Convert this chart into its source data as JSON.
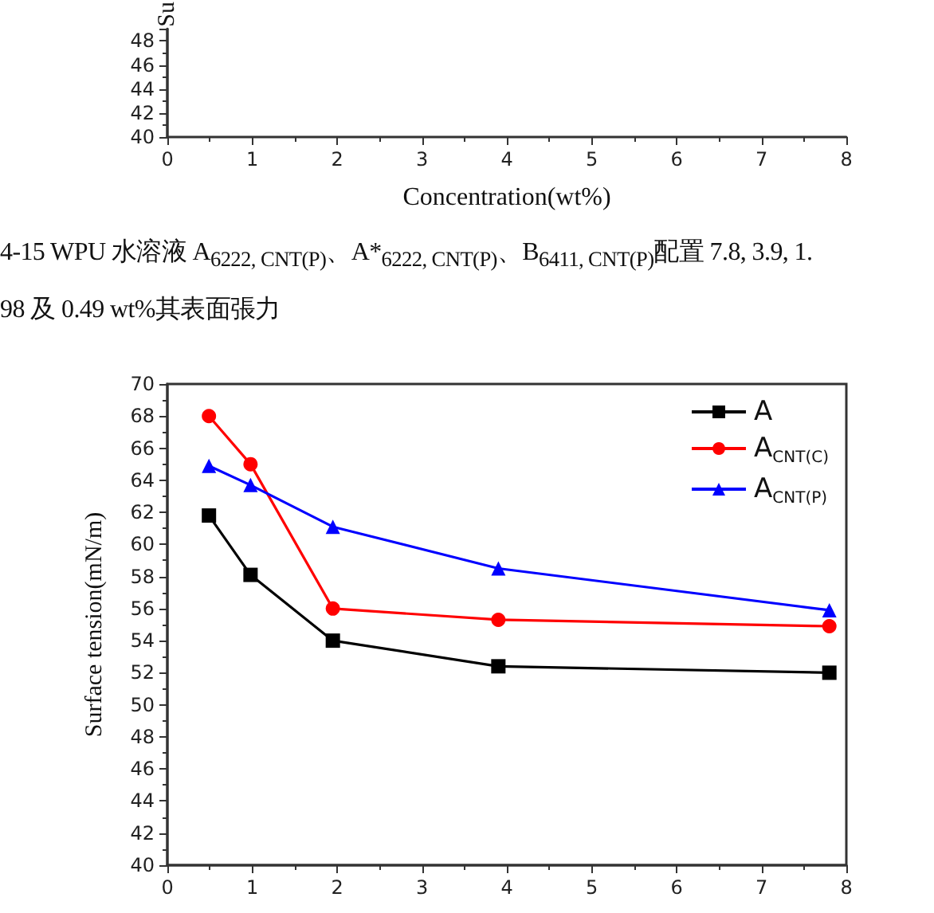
{
  "chart_data": [
    {
      "type": "line",
      "xlabel": "Concentration(wt%)",
      "ylabel": "Su",
      "xlim": [
        0,
        8
      ],
      "xticks": [
        0,
        1,
        2,
        3,
        4,
        5,
        6,
        7,
        8
      ],
      "ylim": [
        40,
        49
      ],
      "yticks": [
        40,
        42,
        44,
        46,
        48
      ],
      "grid": false,
      "legend": false,
      "annotations": [
        "4-15 WPU 水溶液 A$_{6222, CNT(P)}$、A*$_{6222, CNT(P)}$、B$_{6411, CNT(P)}$配置 7.8, 3.9, 1.",
        "98 及 0.49 wt%其表面張力"
      ]
    },
    {
      "type": "line",
      "ylabel": "Surface tension(mN/m)",
      "xlim": [
        0,
        8
      ],
      "xticks": [
        0,
        1,
        2,
        3,
        4,
        5,
        6,
        7,
        8
      ],
      "ylim": [
        40,
        70
      ],
      "yticks": [
        40,
        42,
        44,
        46,
        48,
        50,
        52,
        54,
        56,
        58,
        60,
        62,
        64,
        66,
        68,
        70
      ],
      "grid": false,
      "legend": "top right",
      "x": [
        0.49,
        0.98,
        1.95,
        3.9,
        7.8
      ],
      "series": [
        {
          "name": "A",
          "color": "#000000",
          "marker": "square",
          "values": [
            61.8,
            58.1,
            54.0,
            52.4,
            52.0
          ]
        },
        {
          "name": "A$_{CNT(C)}$",
          "color": "#ff0000",
          "marker": "circle",
          "values": [
            68.0,
            65.0,
            56.0,
            55.3,
            54.9
          ]
        },
        {
          "name": "A$_{CNT(P)}$",
          "color": "#0000ff",
          "marker": "triangle",
          "values": [
            64.9,
            63.7,
            61.1,
            58.5,
            55.9
          ]
        }
      ]
    }
  ]
}
